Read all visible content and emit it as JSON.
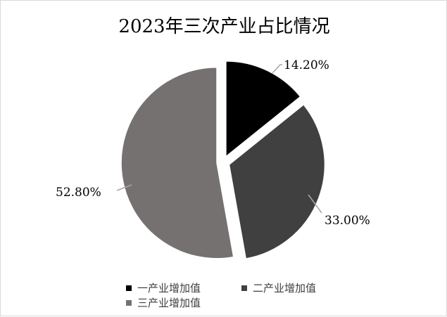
{
  "chart_data": {
    "type": "pie",
    "title": "2023年三次产业占比情况",
    "exploded": true,
    "start_angle_deg": 0,
    "direction": "clockwise",
    "slices": [
      {
        "name": "一产业增加值",
        "value": 14.2,
        "label": "14.20%",
        "color": "#000000"
      },
      {
        "name": "二产业增加值",
        "value": 33.0,
        "label": "33.00%",
        "color": "#404040"
      },
      {
        "name": "三产业增加值",
        "value": 52.8,
        "label": "52.80%",
        "color": "#767171"
      }
    ],
    "legend": {
      "placement": "bottom"
    },
    "leader_line_color": "#a6a6a6"
  }
}
